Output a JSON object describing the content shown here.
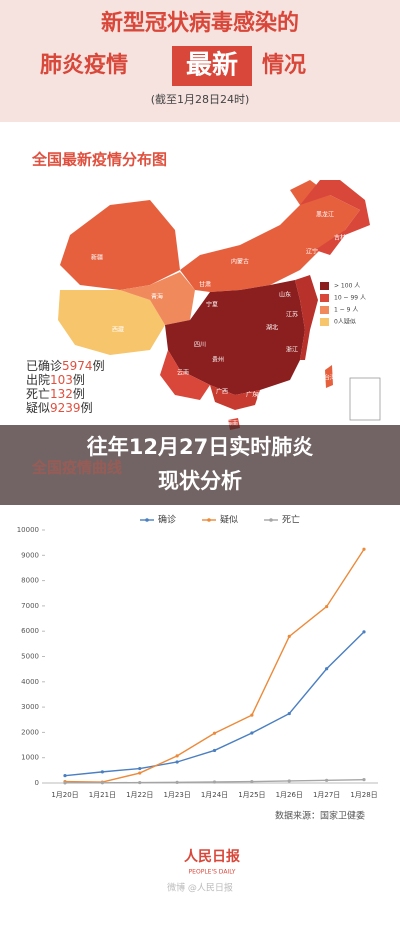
{
  "header": {
    "title_line1": "新型冠状病毒感染的",
    "title_line2_left": "肺炎疫情",
    "title_line2_highlight": "最新",
    "title_line2_right": "情况",
    "subtitle": "(截至1月28日24时)"
  },
  "map": {
    "title": "全国最新疫情分布图",
    "provinces": [
      "新疆",
      "西藏",
      "青海",
      "甘肃",
      "内蒙古",
      "黑龙江",
      "吉林",
      "辽宁",
      "宁夏",
      "四川",
      "湖北",
      "广东",
      "云南",
      "广西",
      "贵州",
      "山东",
      "江苏",
      "浙江",
      "台湾",
      "香港",
      "海南"
    ],
    "legend": [
      "> 100 人",
      "10 ~ 99 人",
      "1 ~ 9 人",
      "0人疑似"
    ],
    "stats": [
      {
        "label": "已确诊",
        "value": 5974,
        "unit": "例"
      },
      {
        "label": "出院",
        "value": 103,
        "unit": "例"
      },
      {
        "label": "死亡",
        "value": 132,
        "unit": "例"
      },
      {
        "label": "疑似",
        "value": 9239,
        "unit": "例"
      }
    ]
  },
  "overlay": {
    "line1": "往年12月27日实时肺炎",
    "line2": "现状分析"
  },
  "chart_data": {
    "type": "line",
    "title": "全国疫情曲线",
    "categories": [
      "1月20日",
      "1月21日",
      "1月22日",
      "1月23日",
      "1月24日",
      "1月25日",
      "1月26日",
      "1月27日",
      "1月28日"
    ],
    "series": [
      {
        "name": "确诊",
        "color": "#4a7fc1",
        "values": [
          291,
          440,
          571,
          830,
          1287,
          1975,
          2744,
          4515,
          5974
        ]
      },
      {
        "name": "疑似",
        "color": "#ec8a3a",
        "values": [
          54,
          37,
          393,
          1072,
          1965,
          2684,
          5794,
          6973,
          9239
        ]
      },
      {
        "name": "死亡",
        "color": "#a5a5a5",
        "values": [
          6,
          9,
          17,
          25,
          41,
          56,
          80,
          106,
          132
        ]
      }
    ],
    "ylim": [
      0,
      10000
    ],
    "yticks": [
      0,
      1000,
      2000,
      3000,
      4000,
      5000,
      6000,
      7000,
      8000,
      9000,
      10000
    ],
    "grid": false,
    "legend": "top",
    "source": "数据来源：国家卫健委"
  },
  "footer": {
    "logo": "人民日报",
    "logo_en": "PEOPLE'S DAILY",
    "watermark": "微博 @人民日报"
  }
}
